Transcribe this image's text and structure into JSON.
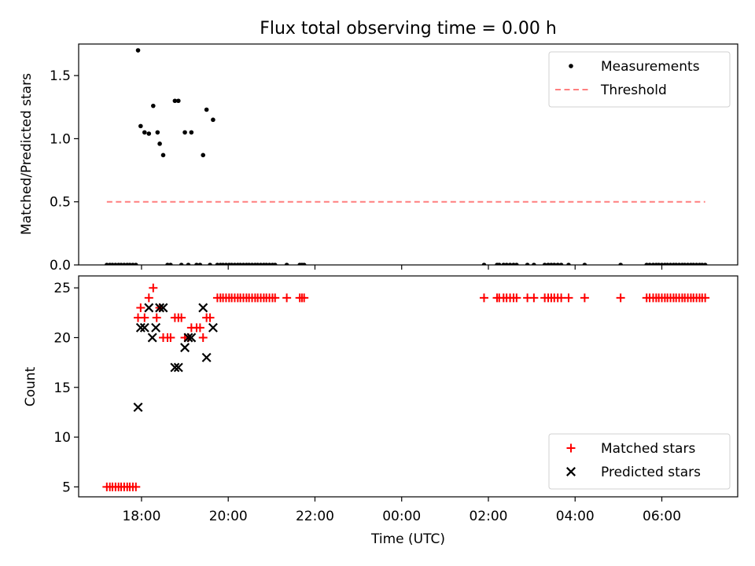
{
  "title": "Flux total observing time = 0.00 h",
  "xlabel": "Time (UTC)",
  "x_ticks": [
    {
      "hour": 18,
      "label": "18:00"
    },
    {
      "hour": 20,
      "label": "20:00"
    },
    {
      "hour": 22,
      "label": "22:00"
    },
    {
      "hour": 24,
      "label": "00:00"
    },
    {
      "hour": 26,
      "label": "02:00"
    },
    {
      "hour": 28,
      "label": "04:00"
    },
    {
      "hour": 30,
      "label": "06:00"
    }
  ],
  "chart_data": [
    {
      "type": "scatter",
      "panel": "top",
      "ylabel": "Matched/Predicted stars",
      "xlim": [
        16.55,
        31.75
      ],
      "ylim": [
        0,
        1.75
      ],
      "y_ticks": [
        {
          "value": 0,
          "label": "0.0"
        },
        {
          "value": 0.5,
          "label": "0.5"
        },
        {
          "value": 1.0,
          "label": "1.0"
        },
        {
          "value": 1.5,
          "label": "1.5"
        }
      ],
      "legend_position": "top-right",
      "series": [
        {
          "name": "Measurements",
          "color": "#000000",
          "marker": "dot",
          "points": [
            [
              17.92,
              1.7
            ],
            [
              17.98,
              1.1
            ],
            [
              18.07,
              1.05
            ],
            [
              18.17,
              1.04
            ],
            [
              18.27,
              1.26
            ],
            [
              18.37,
              1.05
            ],
            [
              18.42,
              0.96
            ],
            [
              18.5,
              0.87
            ],
            [
              18.77,
              1.3
            ],
            [
              18.85,
              1.3
            ],
            [
              19.0,
              1.05
            ],
            [
              19.15,
              1.05
            ],
            [
              19.42,
              0.87
            ],
            [
              19.5,
              1.23
            ],
            [
              19.65,
              1.15
            ],
            [
              17.2,
              0
            ],
            [
              17.27,
              0
            ],
            [
              17.33,
              0
            ],
            [
              17.4,
              0
            ],
            [
              17.47,
              0
            ],
            [
              17.53,
              0
            ],
            [
              17.6,
              0
            ],
            [
              17.67,
              0
            ],
            [
              17.73,
              0
            ],
            [
              17.8,
              0
            ],
            [
              17.87,
              0
            ],
            [
              18.6,
              0
            ],
            [
              18.67,
              0
            ],
            [
              18.92,
              0
            ],
            [
              19.08,
              0
            ],
            [
              19.27,
              0
            ],
            [
              19.35,
              0
            ],
            [
              19.58,
              0
            ],
            [
              19.75,
              0
            ],
            [
              19.82,
              0
            ],
            [
              19.88,
              0
            ],
            [
              19.95,
              0
            ],
            [
              20.02,
              0
            ],
            [
              20.08,
              0
            ],
            [
              20.15,
              0
            ],
            [
              20.22,
              0
            ],
            [
              20.28,
              0
            ],
            [
              20.35,
              0
            ],
            [
              20.42,
              0
            ],
            [
              20.48,
              0
            ],
            [
              20.55,
              0
            ],
            [
              20.62,
              0
            ],
            [
              20.68,
              0
            ],
            [
              20.75,
              0
            ],
            [
              20.82,
              0
            ],
            [
              20.88,
              0
            ],
            [
              20.95,
              0
            ],
            [
              21.02,
              0
            ],
            [
              21.08,
              0
            ],
            [
              21.35,
              0
            ],
            [
              21.65,
              0
            ],
            [
              21.7,
              0
            ],
            [
              21.75,
              0
            ],
            [
              25.9,
              0
            ],
            [
              26.2,
              0
            ],
            [
              26.25,
              0
            ],
            [
              26.35,
              0
            ],
            [
              26.42,
              0
            ],
            [
              26.5,
              0
            ],
            [
              26.58,
              0
            ],
            [
              26.65,
              0
            ],
            [
              26.9,
              0
            ],
            [
              27.05,
              0
            ],
            [
              27.3,
              0
            ],
            [
              27.38,
              0
            ],
            [
              27.45,
              0
            ],
            [
              27.52,
              0
            ],
            [
              27.6,
              0
            ],
            [
              27.68,
              0
            ],
            [
              27.85,
              0
            ],
            [
              28.22,
              0
            ],
            [
              29.05,
              0
            ],
            [
              29.65,
              0
            ],
            [
              29.72,
              0
            ],
            [
              29.8,
              0
            ],
            [
              29.87,
              0
            ],
            [
              29.93,
              0
            ],
            [
              30.0,
              0
            ],
            [
              30.07,
              0
            ],
            [
              30.13,
              0
            ],
            [
              30.2,
              0
            ],
            [
              30.27,
              0
            ],
            [
              30.33,
              0
            ],
            [
              30.4,
              0
            ],
            [
              30.47,
              0
            ],
            [
              30.53,
              0
            ],
            [
              30.6,
              0
            ],
            [
              30.67,
              0
            ],
            [
              30.73,
              0
            ],
            [
              30.8,
              0
            ],
            [
              30.87,
              0
            ],
            [
              30.93,
              0
            ],
            [
              31.0,
              0
            ]
          ]
        },
        {
          "name": "Threshold",
          "color": "#ff7f7f",
          "marker": "dashed-line",
          "points": [
            [
              17.2,
              0.5
            ],
            [
              31.0,
              0.5
            ]
          ]
        }
      ]
    },
    {
      "type": "scatter",
      "panel": "bottom",
      "ylabel": "Count",
      "xlim": [
        16.55,
        31.75
      ],
      "ylim": [
        4,
        26.2
      ],
      "y_ticks": [
        {
          "value": 5,
          "label": "5"
        },
        {
          "value": 10,
          "label": "10"
        },
        {
          "value": 15,
          "label": "15"
        },
        {
          "value": 20,
          "label": "20"
        },
        {
          "value": 25,
          "label": "25"
        }
      ],
      "legend_position": "bottom-right",
      "series": [
        {
          "name": "Matched stars",
          "color": "#ff0000",
          "marker": "plus",
          "points": [
            [
              17.2,
              5
            ],
            [
              17.27,
              5
            ],
            [
              17.33,
              5
            ],
            [
              17.4,
              5
            ],
            [
              17.47,
              5
            ],
            [
              17.53,
              5
            ],
            [
              17.6,
              5
            ],
            [
              17.67,
              5
            ],
            [
              17.73,
              5
            ],
            [
              17.8,
              5
            ],
            [
              17.87,
              5
            ],
            [
              17.92,
              22
            ],
            [
              17.98,
              23
            ],
            [
              18.07,
              22
            ],
            [
              18.17,
              24
            ],
            [
              18.27,
              25
            ],
            [
              18.35,
              22
            ],
            [
              18.42,
              23
            ],
            [
              18.5,
              20
            ],
            [
              18.6,
              20
            ],
            [
              18.67,
              20
            ],
            [
              18.77,
              22
            ],
            [
              18.85,
              22
            ],
            [
              18.92,
              22
            ],
            [
              19.0,
              20
            ],
            [
              19.08,
              20
            ],
            [
              19.15,
              21
            ],
            [
              19.27,
              21
            ],
            [
              19.35,
              21
            ],
            [
              19.42,
              20
            ],
            [
              19.5,
              22
            ],
            [
              19.58,
              22
            ],
            [
              19.75,
              24
            ],
            [
              19.82,
              24
            ],
            [
              19.88,
              24
            ],
            [
              19.95,
              24
            ],
            [
              20.02,
              24
            ],
            [
              20.08,
              24
            ],
            [
              20.15,
              24
            ],
            [
              20.22,
              24
            ],
            [
              20.28,
              24
            ],
            [
              20.35,
              24
            ],
            [
              20.42,
              24
            ],
            [
              20.48,
              24
            ],
            [
              20.55,
              24
            ],
            [
              20.62,
              24
            ],
            [
              20.68,
              24
            ],
            [
              20.75,
              24
            ],
            [
              20.82,
              24
            ],
            [
              20.88,
              24
            ],
            [
              20.95,
              24
            ],
            [
              21.02,
              24
            ],
            [
              21.08,
              24
            ],
            [
              21.35,
              24
            ],
            [
              21.65,
              24
            ],
            [
              21.7,
              24
            ],
            [
              21.75,
              24
            ],
            [
              25.9,
              24
            ],
            [
              26.2,
              24
            ],
            [
              26.25,
              24
            ],
            [
              26.35,
              24
            ],
            [
              26.42,
              24
            ],
            [
              26.5,
              24
            ],
            [
              26.58,
              24
            ],
            [
              26.65,
              24
            ],
            [
              26.9,
              24
            ],
            [
              27.05,
              24
            ],
            [
              27.3,
              24
            ],
            [
              27.38,
              24
            ],
            [
              27.45,
              24
            ],
            [
              27.52,
              24
            ],
            [
              27.6,
              24
            ],
            [
              27.68,
              24
            ],
            [
              27.85,
              24
            ],
            [
              28.22,
              24
            ],
            [
              29.05,
              24
            ],
            [
              29.65,
              24
            ],
            [
              29.72,
              24
            ],
            [
              29.8,
              24
            ],
            [
              29.87,
              24
            ],
            [
              29.93,
              24
            ],
            [
              30.0,
              24
            ],
            [
              30.07,
              24
            ],
            [
              30.13,
              24
            ],
            [
              30.2,
              24
            ],
            [
              30.27,
              24
            ],
            [
              30.33,
              24
            ],
            [
              30.4,
              24
            ],
            [
              30.47,
              24
            ],
            [
              30.53,
              24
            ],
            [
              30.6,
              24
            ],
            [
              30.67,
              24
            ],
            [
              30.73,
              24
            ],
            [
              30.8,
              24
            ],
            [
              30.87,
              24
            ],
            [
              30.93,
              24
            ],
            [
              31.0,
              24
            ]
          ]
        },
        {
          "name": "Predicted stars",
          "color": "#000000",
          "marker": "x",
          "points": [
            [
              17.92,
              13
            ],
            [
              17.98,
              21
            ],
            [
              18.07,
              21
            ],
            [
              18.17,
              23
            ],
            [
              18.25,
              20
            ],
            [
              18.33,
              21
            ],
            [
              18.42,
              23
            ],
            [
              18.5,
              23
            ],
            [
              18.77,
              17
            ],
            [
              18.85,
              17
            ],
            [
              19.0,
              19
            ],
            [
              19.08,
              20
            ],
            [
              19.15,
              20
            ],
            [
              19.42,
              23
            ],
            [
              19.5,
              18
            ],
            [
              19.65,
              21
            ]
          ]
        }
      ]
    }
  ]
}
